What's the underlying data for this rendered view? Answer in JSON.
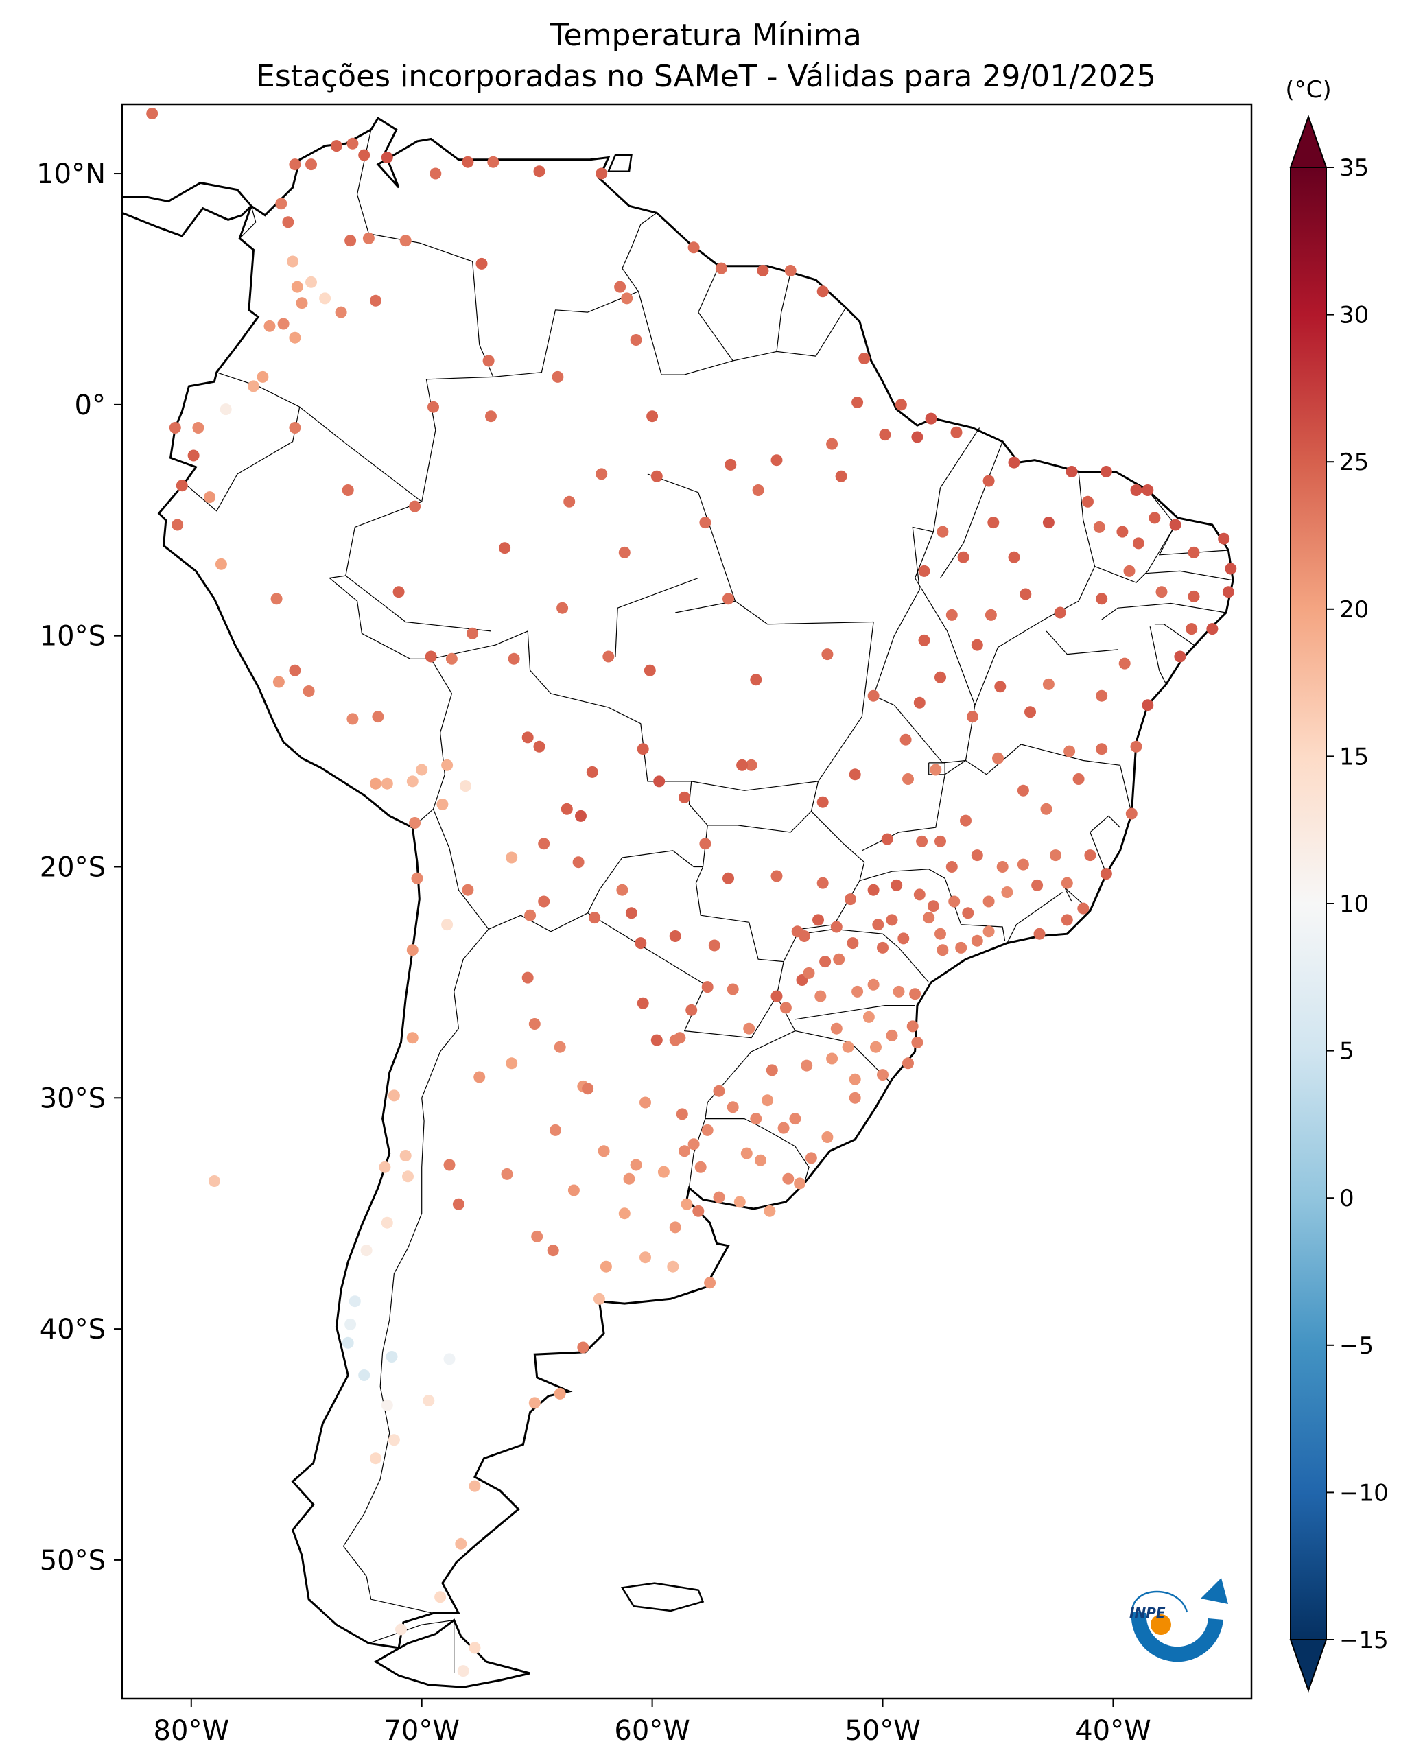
{
  "title": {
    "line1": "Temperatura Mínima",
    "line2": "Estações incorporadas no SAMeT - Válidas para 29/01/2025"
  },
  "map": {
    "lon_range": [
      -83,
      -34
    ],
    "lat_range": [
      -56,
      13
    ],
    "lon_ticks": [
      {
        "value": -80,
        "label": "80°W"
      },
      {
        "value": -70,
        "label": "70°W"
      },
      {
        "value": -60,
        "label": "60°W"
      },
      {
        "value": -50,
        "label": "50°W"
      },
      {
        "value": -40,
        "label": "40°W"
      }
    ],
    "lat_ticks": [
      {
        "value": 10,
        "label": "10°N"
      },
      {
        "value": 0,
        "label": "0°"
      },
      {
        "value": -10,
        "label": "10°S"
      },
      {
        "value": -20,
        "label": "20°S"
      },
      {
        "value": -30,
        "label": "30°S"
      },
      {
        "value": -40,
        "label": "40°S"
      },
      {
        "value": -50,
        "label": "50°S"
      }
    ]
  },
  "colorbar": {
    "unit": "(°C)",
    "min": -15,
    "max": 35,
    "ticks": [
      35,
      30,
      25,
      20,
      15,
      10,
      5,
      0,
      -5,
      -10,
      -15
    ],
    "tick_labels": [
      "35",
      "30",
      "25",
      "20",
      "15",
      "10",
      "5",
      "0",
      "−5",
      "−10",
      "−15"
    ],
    "colormap": "RdBu_r"
  },
  "logo": {
    "text": "INPE"
  },
  "stations": [
    [
      -81.7,
      12.6,
      24
    ],
    [
      -73.7,
      11.2,
      25
    ],
    [
      -73.0,
      11.3,
      24
    ],
    [
      -74.8,
      10.4,
      24
    ],
    [
      -75.5,
      10.4,
      24
    ],
    [
      -72.5,
      10.8,
      25
    ],
    [
      -71.5,
      10.7,
      26
    ],
    [
      -69.4,
      10.0,
      24
    ],
    [
      -68.0,
      10.5,
      25
    ],
    [
      -64.9,
      10.1,
      25
    ],
    [
      -62.2,
      10.0,
      25
    ],
    [
      -66.9,
      10.5,
      24
    ],
    [
      -76.1,
      8.7,
      23
    ],
    [
      -75.8,
      7.9,
      24
    ],
    [
      -73.1,
      7.1,
      24
    ],
    [
      -72.3,
      7.2,
      23
    ],
    [
      -70.7,
      7.1,
      23
    ],
    [
      -67.4,
      6.1,
      25
    ],
    [
      -75.6,
      6.2,
      18
    ],
    [
      -75.4,
      5.1,
      20
    ],
    [
      -74.2,
      4.6,
      15
    ],
    [
      -76.6,
      3.4,
      21
    ],
    [
      -76.0,
      3.5,
      22
    ],
    [
      -74.8,
      5.3,
      16
    ],
    [
      -73.5,
      4.0,
      22
    ],
    [
      -75.2,
      4.4,
      21
    ],
    [
      -75.5,
      2.9,
      20
    ],
    [
      -72.0,
      4.5,
      24
    ],
    [
      -76.9,
      1.2,
      20
    ],
    [
      -77.3,
      0.8,
      19
    ],
    [
      -79.7,
      -1.0,
      22
    ],
    [
      -78.5,
      -0.2,
      12
    ],
    [
      -80.7,
      -1.0,
      24
    ],
    [
      -79.9,
      -2.2,
      25
    ],
    [
      -80.4,
      -3.5,
      25
    ],
    [
      -79.2,
      -4.0,
      21
    ],
    [
      -78.7,
      -6.9,
      20
    ],
    [
      -80.6,
      -5.2,
      24
    ],
    [
      -75.5,
      -1.0,
      23
    ],
    [
      -73.2,
      -3.7,
      24
    ],
    [
      -76.3,
      -8.4,
      23
    ],
    [
      -71.0,
      -8.1,
      25
    ],
    [
      -75.5,
      -11.5,
      24
    ],
    [
      -76.2,
      -12.0,
      21
    ],
    [
      -74.9,
      -12.4,
      23
    ],
    [
      -73.0,
      -13.6,
      22
    ],
    [
      -71.9,
      -13.5,
      23
    ],
    [
      -68.9,
      -15.6,
      19
    ],
    [
      -70.4,
      -16.3,
      18
    ],
    [
      -71.5,
      -16.4,
      19
    ],
    [
      -70.0,
      -15.8,
      18
    ],
    [
      -72.0,
      -16.4,
      20
    ],
    [
      -68.1,
      -16.5,
      14
    ],
    [
      -69.1,
      -17.3,
      19
    ],
    [
      -70.3,
      -18.1,
      22
    ],
    [
      -70.2,
      -20.5,
      22
    ],
    [
      -70.4,
      -23.6,
      21
    ],
    [
      -68.9,
      -22.5,
      14
    ],
    [
      -70.4,
      -27.4,
      20
    ],
    [
      -71.2,
      -29.9,
      18
    ],
    [
      -70.7,
      -32.5,
      17
    ],
    [
      -71.6,
      -33.0,
      17
    ],
    [
      -70.6,
      -33.4,
      16
    ],
    [
      -71.5,
      -35.4,
      14
    ],
    [
      -72.4,
      -36.6,
      12
    ],
    [
      -72.9,
      -38.8,
      7
    ],
    [
      -73.1,
      -39.8,
      8
    ],
    [
      -73.2,
      -40.6,
      6
    ],
    [
      -72.5,
      -42.0,
      6
    ],
    [
      -71.5,
      -43.3,
      11
    ],
    [
      -72.0,
      -45.6,
      15
    ],
    [
      -71.2,
      -44.8,
      14
    ],
    [
      -70.9,
      -53.0,
      13
    ],
    [
      -68.2,
      -54.8,
      13
    ],
    [
      -67.7,
      -53.8,
      15
    ],
    [
      -69.2,
      -51.6,
      15
    ],
    [
      -68.3,
      -49.3,
      18
    ],
    [
      -67.7,
      -46.8,
      18
    ],
    [
      -65.1,
      -43.2,
      19
    ],
    [
      -64.0,
      -42.8,
      20
    ],
    [
      -62.3,
      -38.7,
      18
    ],
    [
      -63.0,
      -40.8,
      23
    ],
    [
      -57.5,
      -38.0,
      21
    ],
    [
      -59.1,
      -37.3,
      18
    ],
    [
      -60.3,
      -36.9,
      19
    ],
    [
      -62.0,
      -37.3,
      20
    ],
    [
      -58.5,
      -34.6,
      20
    ],
    [
      -58.0,
      -34.9,
      23
    ],
    [
      -64.3,
      -36.6,
      23
    ],
    [
      -64.2,
      -31.4,
      22
    ],
    [
      -65.4,
      -24.8,
      24
    ],
    [
      -65.1,
      -26.8,
      23
    ],
    [
      -64.0,
      -27.8,
      22
    ],
    [
      -63.0,
      -29.5,
      21
    ],
    [
      -66.1,
      -28.5,
      20
    ],
    [
      -67.5,
      -29.1,
      21
    ],
    [
      -68.8,
      -32.9,
      23
    ],
    [
      -68.4,
      -34.6,
      24
    ],
    [
      -66.3,
      -33.3,
      22
    ],
    [
      -62.1,
      -32.3,
      21
    ],
    [
      -60.7,
      -32.9,
      21
    ],
    [
      -58.2,
      -32.0,
      22
    ],
    [
      -60.3,
      -30.2,
      21
    ],
    [
      -59.0,
      -27.5,
      23
    ],
    [
      -58.8,
      -27.4,
      23
    ],
    [
      -60.4,
      -25.9,
      25
    ],
    [
      -57.6,
      -25.2,
      24
    ],
    [
      -56.5,
      -25.3,
      23
    ],
    [
      -54.6,
      -25.6,
      25
    ],
    [
      -55.8,
      -27.0,
      22
    ],
    [
      -64.7,
      -21.5,
      24
    ],
    [
      -63.2,
      -19.8,
      24
    ],
    [
      -64.7,
      -19.0,
      24
    ],
    [
      -66.1,
      -19.6,
      19
    ],
    [
      -68.0,
      -21.0,
      23
    ],
    [
      -65.3,
      -22.1,
      23
    ],
    [
      -60.9,
      -22.0,
      25
    ],
    [
      -59.0,
      -23.0,
      25
    ],
    [
      -61.3,
      -21.0,
      23
    ],
    [
      -63.1,
      -17.8,
      26
    ],
    [
      -62.6,
      -15.9,
      25
    ],
    [
      -60.4,
      -14.9,
      25
    ],
    [
      -59.7,
      -16.3,
      26
    ],
    [
      -63.7,
      -17.5,
      25
    ],
    [
      -65.4,
      -14.4,
      25
    ],
    [
      -64.9,
      -14.8,
      25
    ],
    [
      -66.0,
      -11.0,
      24
    ],
    [
      -68.7,
      -11.0,
      23
    ],
    [
      -69.6,
      -10.9,
      25
    ],
    [
      -67.8,
      -9.9,
      24
    ],
    [
      -63.9,
      -8.8,
      24
    ],
    [
      -60.1,
      -11.5,
      25
    ],
    [
      -61.9,
      -10.9,
      24
    ],
    [
      -59.8,
      -3.1,
      25
    ],
    [
      -62.2,
      -3.0,
      24
    ],
    [
      -60.0,
      -0.5,
      25
    ],
    [
      -57.7,
      -5.1,
      24
    ],
    [
      -55.4,
      -3.7,
      24
    ],
    [
      -56.6,
      -2.6,
      25
    ],
    [
      -54.6,
      -2.4,
      25
    ],
    [
      -51.8,
      -3.1,
      25
    ],
    [
      -52.2,
      -1.7,
      24
    ],
    [
      -49.9,
      -1.3,
      25
    ],
    [
      -48.5,
      -1.4,
      26
    ],
    [
      -47.9,
      -0.6,
      26
    ],
    [
      -46.8,
      -1.2,
      25
    ],
    [
      -49.2,
      0.0,
      25
    ],
    [
      -51.1,
      0.1,
      25
    ],
    [
      -50.8,
      2.0,
      25
    ],
    [
      -52.6,
      4.9,
      25
    ],
    [
      -54.0,
      5.8,
      24
    ],
    [
      -55.2,
      5.8,
      25
    ],
    [
      -57.0,
      5.9,
      24
    ],
    [
      -58.2,
      6.8,
      24
    ],
    [
      -61.4,
      5.1,
      24
    ],
    [
      -60.7,
      2.8,
      24
    ],
    [
      -61.1,
      4.6,
      23
    ],
    [
      -64.1,
      1.2,
      24
    ],
    [
      -67.1,
      1.9,
      24
    ],
    [
      -69.5,
      -0.1,
      24
    ],
    [
      -70.3,
      -4.4,
      24
    ],
    [
      -67.0,
      -0.5,
      24
    ],
    [
      -63.6,
      -4.2,
      24
    ],
    [
      -66.4,
      -6.2,
      25
    ],
    [
      -61.2,
      -6.4,
      24
    ],
    [
      -56.7,
      -8.4,
      24
    ],
    [
      -55.5,
      -11.9,
      25
    ],
    [
      -52.4,
      -10.8,
      24
    ],
    [
      -50.4,
      -12.6,
      24
    ],
    [
      -48.2,
      -10.2,
      25
    ],
    [
      -47.5,
      -11.8,
      25
    ],
    [
      -49.0,
      -14.5,
      24
    ],
    [
      -47.7,
      -15.8,
      22
    ],
    [
      -48.9,
      -16.2,
      23
    ],
    [
      -51.2,
      -16.0,
      25
    ],
    [
      -52.6,
      -17.2,
      25
    ],
    [
      -55.7,
      -15.6,
      24
    ],
    [
      -56.1,
      -15.6,
      25
    ],
    [
      -58.6,
      -17.0,
      25
    ],
    [
      -57.7,
      -19.0,
      24
    ],
    [
      -54.6,
      -20.4,
      24
    ],
    [
      -56.7,
      -20.5,
      25
    ],
    [
      -53.4,
      -23.0,
      24
    ],
    [
      -52.8,
      -22.3,
      25
    ],
    [
      -51.4,
      -21.4,
      24
    ],
    [
      -50.4,
      -21.0,
      25
    ],
    [
      -49.4,
      -20.8,
      25
    ],
    [
      -48.4,
      -21.2,
      24
    ],
    [
      -47.8,
      -21.7,
      24
    ],
    [
      -46.6,
      -23.5,
      23
    ],
    [
      -47.5,
      -22.9,
      23
    ],
    [
      -45.9,
      -23.2,
      23
    ],
    [
      -46.3,
      -22.0,
      24
    ],
    [
      -46.9,
      -21.5,
      23
    ],
    [
      -48.0,
      -22.2,
      23
    ],
    [
      -49.1,
      -23.1,
      24
    ],
    [
      -50.2,
      -22.5,
      24
    ],
    [
      -51.3,
      -23.3,
      24
    ],
    [
      -52.5,
      -24.1,
      24
    ],
    [
      -53.5,
      -24.9,
      25
    ],
    [
      -50.4,
      -25.1,
      22
    ],
    [
      -49.3,
      -25.4,
      22
    ],
    [
      -48.6,
      -25.5,
      23
    ],
    [
      -50.6,
      -26.5,
      21
    ],
    [
      -51.1,
      -25.4,
      22
    ],
    [
      -52.0,
      -27.0,
      22
    ],
    [
      -52.2,
      -28.3,
      21
    ],
    [
      -51.2,
      -29.2,
      21
    ],
    [
      -50.0,
      -29.0,
      22
    ],
    [
      -51.2,
      -30.0,
      22
    ],
    [
      -52.4,
      -31.7,
      21
    ],
    [
      -53.1,
      -32.6,
      22
    ],
    [
      -54.3,
      -31.3,
      22
    ],
    [
      -55.5,
      -30.9,
      22
    ],
    [
      -56.5,
      -30.4,
      22
    ],
    [
      -57.1,
      -29.7,
      23
    ],
    [
      -57.6,
      -31.4,
      22
    ],
    [
      -56.2,
      -34.5,
      20
    ],
    [
      -54.9,
      -34.9,
      20
    ],
    [
      -53.6,
      -33.7,
      21
    ],
    [
      -55.9,
      -32.4,
      21
    ],
    [
      -48.5,
      -27.6,
      23
    ],
    [
      -49.6,
      -27.3,
      22
    ],
    [
      -48.7,
      -26.9,
      23
    ],
    [
      -48.9,
      -28.5,
      23
    ],
    [
      -50.3,
      -27.8,
      21
    ],
    [
      -43.2,
      -22.9,
      24
    ],
    [
      -42.0,
      -22.3,
      24
    ],
    [
      -41.3,
      -21.8,
      24
    ],
    [
      -40.3,
      -20.3,
      25
    ],
    [
      -41.0,
      -19.5,
      24
    ],
    [
      -42.5,
      -19.5,
      23
    ],
    [
      -43.9,
      -19.9,
      23
    ],
    [
      -44.6,
      -21.1,
      22
    ],
    [
      -45.4,
      -21.5,
      23
    ],
    [
      -47.0,
      -20.0,
      24
    ],
    [
      -46.4,
      -18.0,
      24
    ],
    [
      -43.9,
      -16.7,
      24
    ],
    [
      -42.9,
      -17.5,
      23
    ],
    [
      -41.5,
      -16.2,
      24
    ],
    [
      -39.2,
      -17.7,
      24
    ],
    [
      -39.0,
      -14.8,
      24
    ],
    [
      -38.5,
      -13.0,
      26
    ],
    [
      -40.5,
      -14.9,
      24
    ],
    [
      -41.9,
      -15.0,
      23
    ],
    [
      -43.6,
      -13.3,
      25
    ],
    [
      -44.9,
      -12.2,
      25
    ],
    [
      -45.9,
      -10.4,
      25
    ],
    [
      -42.8,
      -12.1,
      23
    ],
    [
      -40.5,
      -12.6,
      24
    ],
    [
      -39.5,
      -11.2,
      24
    ],
    [
      -37.1,
      -10.9,
      26
    ],
    [
      -35.7,
      -9.7,
      26
    ],
    [
      -36.6,
      -9.7,
      25
    ],
    [
      -35.0,
      -8.1,
      26
    ],
    [
      -36.5,
      -8.3,
      25
    ],
    [
      -37.9,
      -8.1,
      24
    ],
    [
      -39.3,
      -7.2,
      24
    ],
    [
      -40.5,
      -8.4,
      25
    ],
    [
      -42.3,
      -9.0,
      25
    ],
    [
      -43.8,
      -8.2,
      25
    ],
    [
      -44.3,
      -6.6,
      25
    ],
    [
      -45.2,
      -5.1,
      25
    ],
    [
      -47.4,
      -5.5,
      24
    ],
    [
      -48.2,
      -7.2,
      25
    ],
    [
      -42.8,
      -5.1,
      26
    ],
    [
      -41.8,
      -2.9,
      26
    ],
    [
      -40.3,
      -2.9,
      26
    ],
    [
      -39.0,
      -3.7,
      26
    ],
    [
      -38.5,
      -3.7,
      26
    ],
    [
      -37.3,
      -5.2,
      26
    ],
    [
      -35.2,
      -5.8,
      26
    ],
    [
      -36.5,
      -6.4,
      25
    ],
    [
      -34.9,
      -7.1,
      26
    ],
    [
      -44.3,
      -2.5,
      26
    ],
    [
      -45.4,
      -3.3,
      25
    ],
    [
      -38.9,
      -6.0,
      25
    ],
    [
      -38.2,
      -4.9,
      25
    ],
    [
      -41.1,
      -4.2,
      25
    ],
    [
      -40.6,
      -5.3,
      24
    ],
    [
      -39.6,
      -5.5,
      25
    ],
    [
      -46.5,
      -6.6,
      25
    ],
    [
      -45.3,
      -9.1,
      24
    ],
    [
      -47.0,
      -9.1,
      24
    ],
    [
      -48.4,
      -12.9,
      25
    ],
    [
      -46.1,
      -13.5,
      24
    ],
    [
      -45.0,
      -15.3,
      23
    ],
    [
      -49.8,
      -18.8,
      25
    ],
    [
      -48.3,
      -18.9,
      24
    ],
    [
      -47.5,
      -18.9,
      24
    ],
    [
      -45.9,
      -19.5,
      24
    ],
    [
      -44.8,
      -20.0,
      23
    ],
    [
      -43.3,
      -20.8,
      24
    ],
    [
      -42.0,
      -20.7,
      23
    ],
    [
      -52.6,
      -20.7,
      24
    ],
    [
      -53.7,
      -22.8,
      24
    ],
    [
      -52.0,
      -22.6,
      24
    ],
    [
      -50.0,
      -23.5,
      24
    ],
    [
      -47.4,
      -23.6,
      23
    ],
    [
      -45.4,
      -22.8,
      22
    ],
    [
      -49.6,
      -22.3,
      24
    ],
    [
      -51.9,
      -24.0,
      23
    ],
    [
      -53.2,
      -24.6,
      23
    ],
    [
      -54.2,
      -26.1,
      23
    ],
    [
      -52.7,
      -25.6,
      22
    ],
    [
      -51.5,
      -27.8,
      21
    ],
    [
      -53.3,
      -28.6,
      22
    ],
    [
      -54.8,
      -28.8,
      23
    ],
    [
      -55.0,
      -30.1,
      21
    ],
    [
      -53.8,
      -30.9,
      22
    ],
    [
      -55.3,
      -32.7,
      21
    ],
    [
      -54.1,
      -33.5,
      22
    ],
    [
      -58.6,
      -32.3,
      22
    ],
    [
      -57.9,
      -33.0,
      22
    ],
    [
      -57.1,
      -34.3,
      22
    ],
    [
      -58.7,
      -30.7,
      23
    ],
    [
      -59.8,
      -27.5,
      25
    ],
    [
      -58.3,
      -26.2,
      24
    ],
    [
      -57.3,
      -23.4,
      24
    ],
    [
      -60.5,
      -23.3,
      25
    ],
    [
      -62.5,
      -22.2,
      24
    ],
    [
      -69.7,
      -43.1,
      14
    ],
    [
      -71.3,
      -41.2,
      6
    ],
    [
      -68.8,
      -41.3,
      9
    ],
    [
      -65.0,
      -36.0,
      22
    ],
    [
      -61.0,
      -33.5,
      21
    ],
    [
      -59.5,
      -33.2,
      20
    ],
    [
      -59.0,
      -35.6,
      21
    ],
    [
      -61.2,
      -35.0,
      20
    ],
    [
      -63.4,
      -34.0,
      21
    ],
    [
      -62.8,
      -29.6,
      23
    ],
    [
      -79.0,
      -33.6,
      17
    ]
  ]
}
